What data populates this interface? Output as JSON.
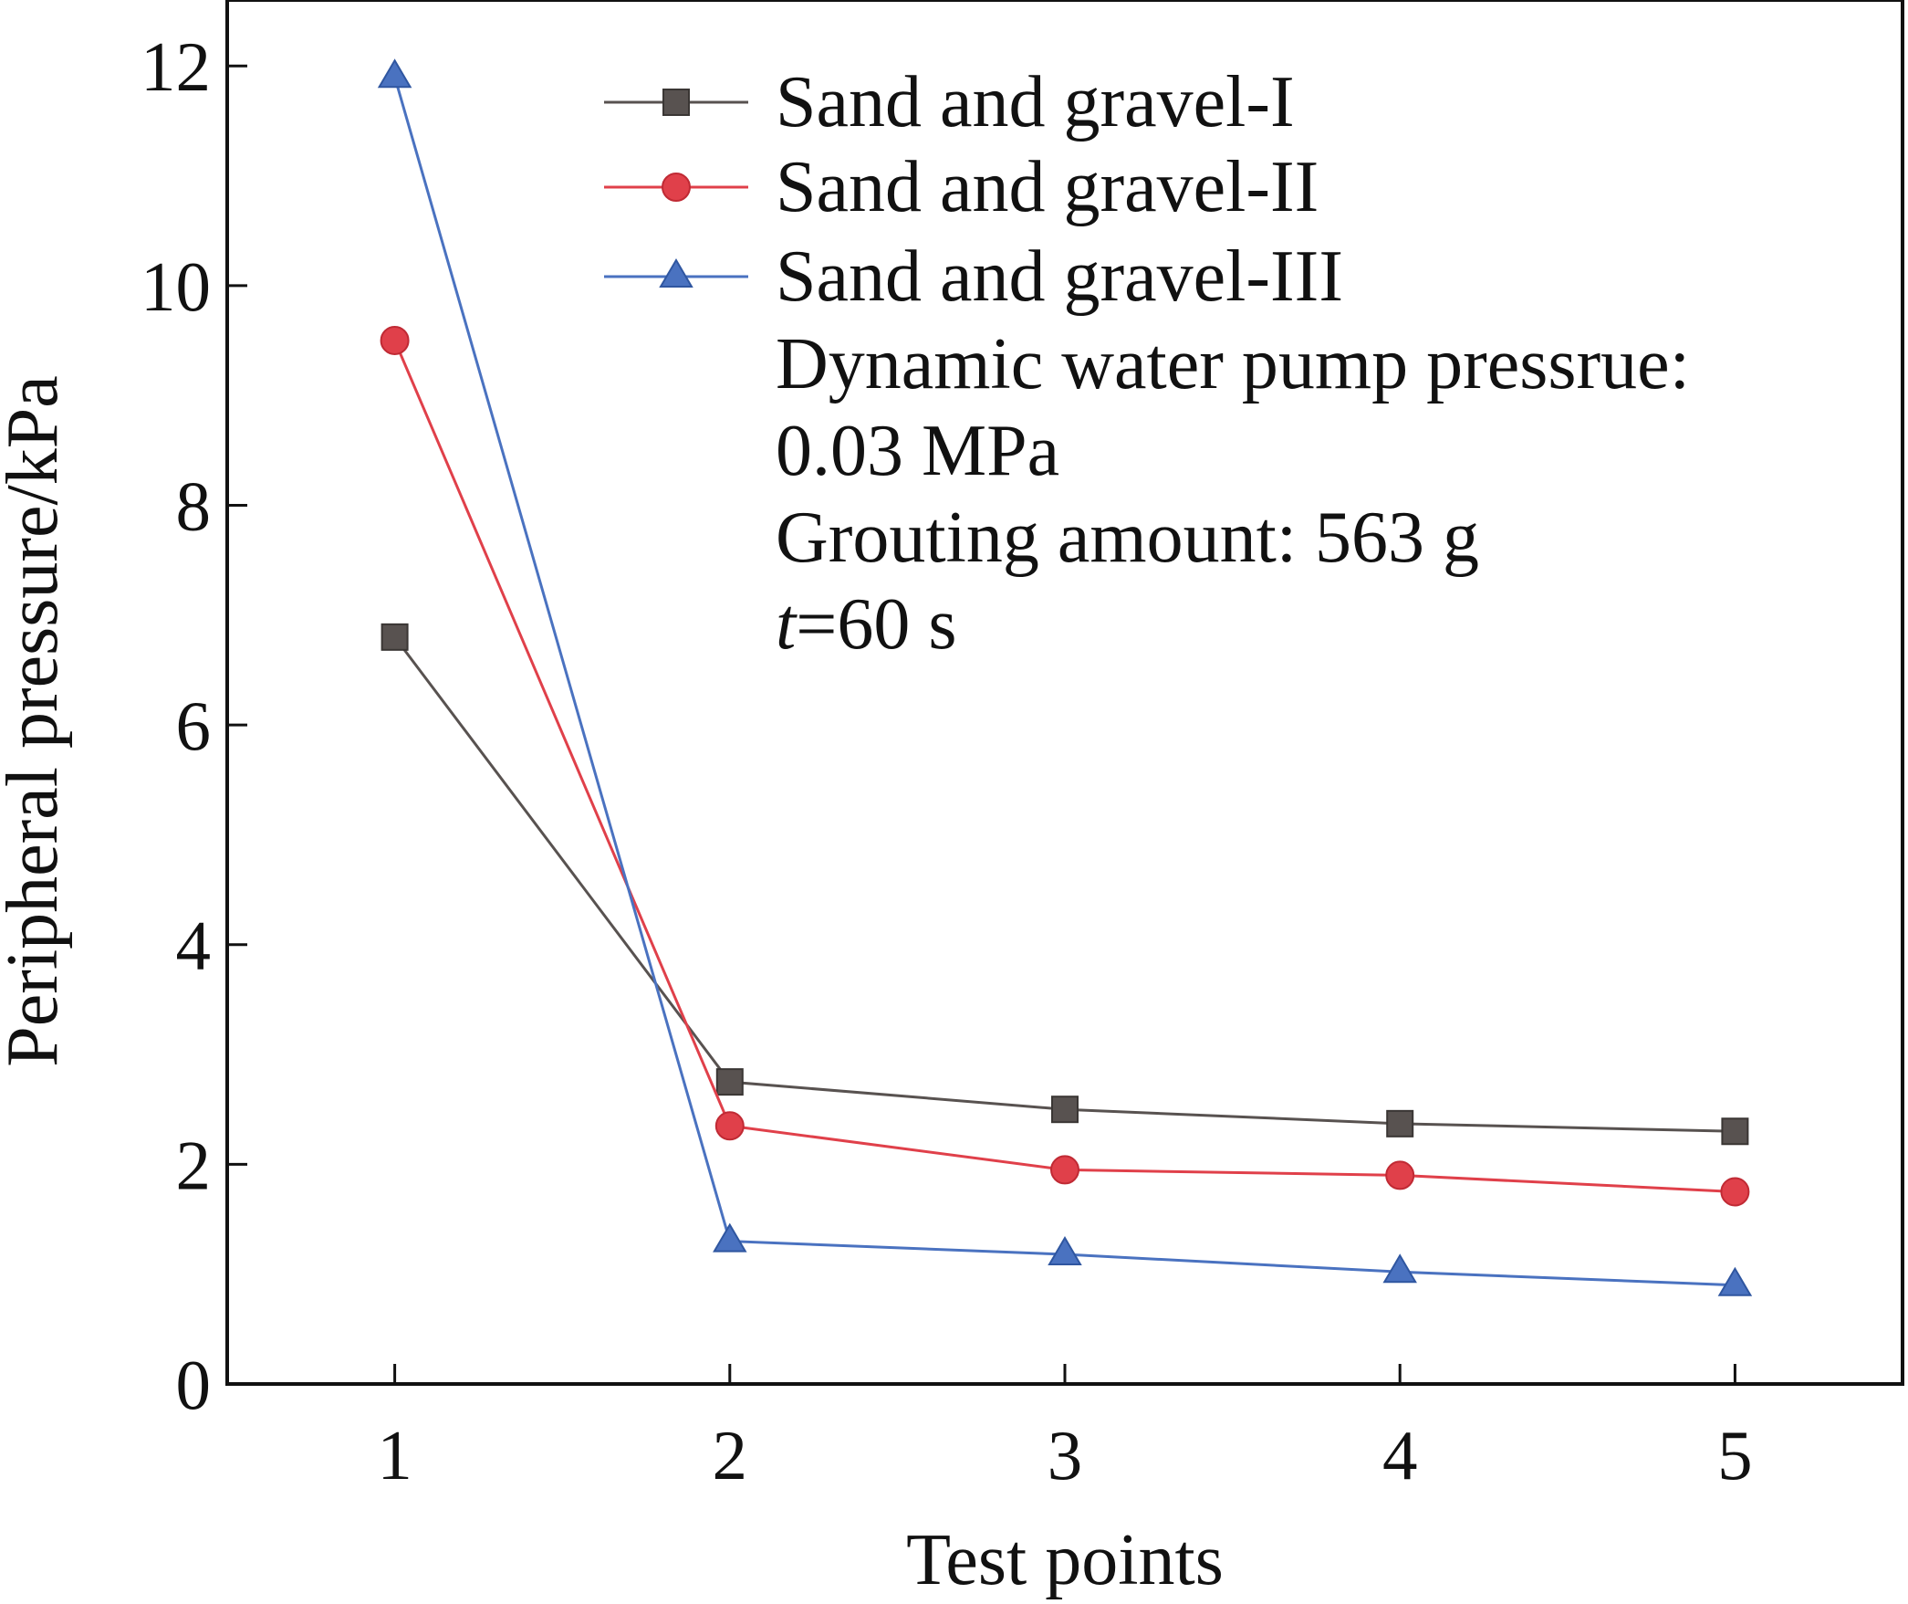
{
  "chart_data": {
    "type": "line",
    "title": "",
    "xlabel": "Test points",
    "ylabel": "Peripheral pressure/kPa",
    "categories": [
      "1",
      "2",
      "3",
      "4",
      "5"
    ],
    "x": [
      1,
      2,
      3,
      4,
      5
    ],
    "xlim": [
      0.5,
      5.5
    ],
    "ylim": [
      0,
      12.6
    ],
    "yticks": [
      0,
      2,
      4,
      6,
      8,
      10,
      12
    ],
    "ytick_labels": [
      "0",
      "2",
      "4",
      "6",
      "8",
      "10",
      "12"
    ],
    "grid": false,
    "legend_position": "top-right",
    "series": [
      {
        "name": "Sand and gravel-I",
        "color": "#585250",
        "marker": "square",
        "values": [
          6.8,
          2.75,
          2.5,
          2.37,
          2.3
        ]
      },
      {
        "name": "Sand and gravel-II",
        "color": "#e0404a",
        "marker": "circle",
        "values": [
          9.5,
          2.35,
          1.95,
          1.9,
          1.75
        ]
      },
      {
        "name": "Sand and gravel-III",
        "color": "#4a72c0",
        "marker": "triangle",
        "values": [
          11.9,
          1.3,
          1.18,
          1.02,
          0.9
        ]
      }
    ],
    "annotations": {
      "line1": "Dynamic water pump pressrue:",
      "line2": "0.03 MPa",
      "line3": "Grouting amount: 563 g",
      "line4_var": "t",
      "line4_rest": "=60 s"
    }
  }
}
